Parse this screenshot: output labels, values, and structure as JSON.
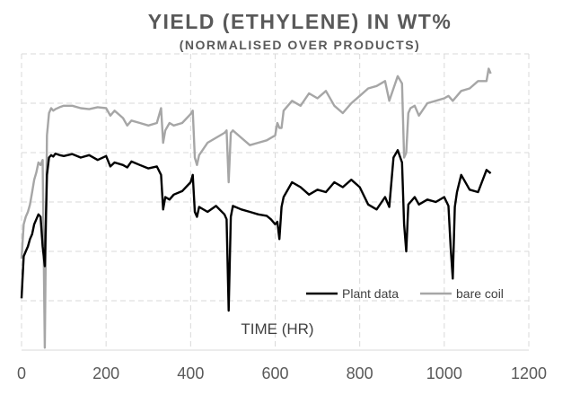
{
  "chart_data": {
    "type": "line",
    "title": "YIELD (ETHYLENE) IN WT%",
    "subtitle": "(NORMALISED OVER PRODUCTS)",
    "xlabel": "TIME (HR)",
    "ylabel": "",
    "xlim": [
      0,
      1200
    ],
    "x_ticks": [
      "0",
      "200",
      "400",
      "600",
      "800",
      "1000",
      "1200"
    ],
    "ylim": [
      0,
      6
    ],
    "y_tick_labels_shown": false,
    "grid": true,
    "legend_position": "bottom-right-inside",
    "colors": {
      "plant": "#000000",
      "bare": "#a6a6a6",
      "grid": "#d9d9d9",
      "text": "#595959"
    },
    "series": [
      {
        "name": "Plant data",
        "color": "#000000",
        "x": [
          0,
          5,
          10,
          15,
          20,
          25,
          30,
          40,
          45,
          50,
          55,
          60,
          65,
          70,
          75,
          80,
          90,
          100,
          120,
          140,
          160,
          180,
          200,
          210,
          220,
          240,
          250,
          260,
          280,
          300,
          320,
          330,
          335,
          340,
          350,
          360,
          380,
          400,
          405,
          410,
          415,
          420,
          440,
          460,
          480,
          485,
          490,
          495,
          500,
          520,
          540,
          560,
          580,
          590,
          600,
          605,
          610,
          615,
          620,
          640,
          660,
          680,
          700,
          720,
          740,
          760,
          780,
          800,
          820,
          840,
          860,
          870,
          880,
          890,
          900,
          905,
          910,
          915,
          920,
          930,
          940,
          960,
          980,
          1000,
          1010,
          1015,
          1020,
          1025,
          1030,
          1040,
          1060,
          1080,
          1100,
          1110
        ],
        "y": [
          1.05,
          1.9,
          2.0,
          2.1,
          2.25,
          2.35,
          2.55,
          2.75,
          2.7,
          2.1,
          1.7,
          3.55,
          3.9,
          3.95,
          3.92,
          3.98,
          3.95,
          3.93,
          3.97,
          3.9,
          3.95,
          3.85,
          3.93,
          3.72,
          3.8,
          3.75,
          3.7,
          3.82,
          3.75,
          3.68,
          3.72,
          3.55,
          2.85,
          3.1,
          3.05,
          3.15,
          3.22,
          3.4,
          3.55,
          2.8,
          2.7,
          2.9,
          2.8,
          2.92,
          2.75,
          2.65,
          0.8,
          2.7,
          2.92,
          2.85,
          2.8,
          2.75,
          2.72,
          2.65,
          2.55,
          2.6,
          2.25,
          2.9,
          3.1,
          3.4,
          3.3,
          3.15,
          3.25,
          3.2,
          3.4,
          3.3,
          3.45,
          3.3,
          2.95,
          2.85,
          3.1,
          2.9,
          3.9,
          4.05,
          3.8,
          2.55,
          2.0,
          2.95,
          3.0,
          3.1,
          2.95,
          3.05,
          3.0,
          3.1,
          2.92,
          2.1,
          1.45,
          2.9,
          3.2,
          3.55,
          3.25,
          3.2,
          3.65,
          3.58
        ]
      },
      {
        "name": "bare coil",
        "color": "#a6a6a6",
        "x": [
          0,
          5,
          10,
          15,
          20,
          25,
          30,
          35,
          40,
          45,
          50,
          55,
          60,
          65,
          70,
          75,
          80,
          90,
          100,
          120,
          140,
          160,
          180,
          200,
          210,
          220,
          240,
          250,
          260,
          280,
          300,
          320,
          330,
          335,
          340,
          350,
          360,
          380,
          400,
          405,
          410,
          415,
          420,
          440,
          460,
          480,
          485,
          490,
          495,
          500,
          520,
          540,
          560,
          580,
          600,
          605,
          610,
          615,
          620,
          640,
          660,
          680,
          700,
          720,
          740,
          760,
          780,
          800,
          820,
          840,
          860,
          870,
          880,
          890,
          900,
          905,
          910,
          915,
          920,
          930,
          940,
          960,
          980,
          1000,
          1010,
          1020,
          1040,
          1060,
          1080,
          1100,
          1105,
          1110
        ],
        "y": [
          1.85,
          2.55,
          2.7,
          2.8,
          2.95,
          3.2,
          3.45,
          3.6,
          3.8,
          3.75,
          3.85,
          0.05,
          4.35,
          4.8,
          4.9,
          4.85,
          4.88,
          4.92,
          4.95,
          4.95,
          4.9,
          4.88,
          4.92,
          4.9,
          4.75,
          4.85,
          4.7,
          4.55,
          4.65,
          4.6,
          4.55,
          4.6,
          4.9,
          4.2,
          4.45,
          4.6,
          4.55,
          4.6,
          4.78,
          4.85,
          3.9,
          3.75,
          3.95,
          4.2,
          4.3,
          4.4,
          4.45,
          3.4,
          4.4,
          4.45,
          4.3,
          4.15,
          4.2,
          4.25,
          4.35,
          4.6,
          4.5,
          4.5,
          4.85,
          5.05,
          4.95,
          5.2,
          5.1,
          5.25,
          4.95,
          4.8,
          5.0,
          5.15,
          5.3,
          5.35,
          5.45,
          5.05,
          5.3,
          5.55,
          5.4,
          3.9,
          4.0,
          4.8,
          4.9,
          4.95,
          4.75,
          5.0,
          5.05,
          5.1,
          5.15,
          5.05,
          5.25,
          5.3,
          5.45,
          5.45,
          5.7,
          5.6
        ]
      }
    ]
  }
}
